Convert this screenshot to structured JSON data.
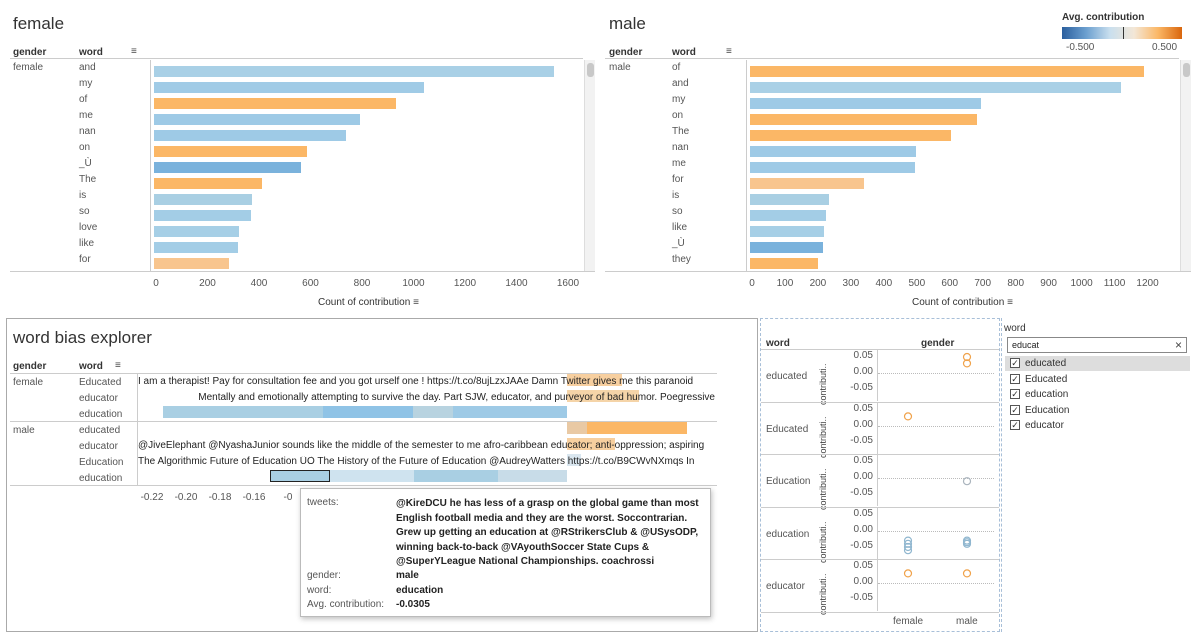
{
  "female_chart": {
    "title": "female",
    "headers": {
      "gender": "gender",
      "word": "word"
    },
    "gender_value": "female",
    "words": [
      "and",
      "my",
      "of",
      "me",
      "nan",
      "on",
      "_Ù",
      "The",
      "is",
      "so",
      "love",
      "like",
      "for"
    ],
    "counts": [
      1555,
      1050,
      940,
      800,
      745,
      595,
      570,
      420,
      380,
      375,
      330,
      325,
      290
    ],
    "colors": [
      "#a9d0e6",
      "#a0cbe6",
      "#fbb766",
      "#9ecae6",
      "#9ecae6",
      "#fbb766",
      "#7ab2dc",
      "#fbb766",
      "#a9cfe3",
      "#a3cde6",
      "#a6cfe6",
      "#a3cde6",
      "#f8c58e"
    ],
    "ticks": [
      "0",
      "200",
      "400",
      "600",
      "800",
      "1000",
      "1200",
      "1400",
      "1600"
    ],
    "xlabel": "Count of contribution",
    "xmax": 1600
  },
  "male_chart": {
    "title": "male",
    "headers": {
      "gender": "gender",
      "word": "word"
    },
    "gender_value": "male",
    "words": [
      "of",
      "and",
      "my",
      "on",
      "The",
      "nan",
      "me",
      "for",
      "is",
      "so",
      "like",
      "_Ù",
      "they"
    ],
    "counts": [
      1195,
      1125,
      700,
      690,
      610,
      505,
      500,
      345,
      240,
      230,
      225,
      220,
      205
    ],
    "colors": [
      "#fbb766",
      "#a9d0e6",
      "#9ecae6",
      "#fbb766",
      "#fbb766",
      "#9ecae6",
      "#9ecae6",
      "#f8c58e",
      "#a9cfe3",
      "#a3cde6",
      "#a6cfe6",
      "#7ab2dc",
      "#fbb766"
    ],
    "ticks": [
      "0",
      "100",
      "200",
      "300",
      "400",
      "500",
      "600",
      "700",
      "800",
      "900",
      "1000",
      "1100",
      "1200"
    ],
    "xlabel": "Count of contribution",
    "xmax": 1250
  },
  "legend": {
    "title": "Avg. contribution",
    "min_label": "-0.500",
    "max_label": "0.500"
  },
  "explorer": {
    "title": "word bias explorer",
    "headers": {
      "gender": "gender",
      "word": "word"
    },
    "rows": [
      {
        "gender": "female",
        "word": "Educated",
        "text": "I am a therapist!  Pay for consultation fee and you got urself one !  https://t.co/8ujLzxJAAe Damn Twitter gives me this paranoid"
      },
      {
        "gender": "",
        "word": "educator",
        "text": "Mentally and emotionally attempting to survive the day. Part SJW, educator, and purveyor of bad humor. Poegressive"
      },
      {
        "gender": "",
        "word": "education",
        "text": ""
      },
      {
        "gender": "male",
        "word": "educated",
        "text": ""
      },
      {
        "gender": "",
        "word": "educator",
        "text": "@JiveElephant @NyashaJunior sounds like the middle of the semester to me afro-caribbean educator; anti-oppression; aspiring"
      },
      {
        "gender": "",
        "word": "Education",
        "text": "The Algorithmic Future of Education ÛÒ The History of the Future of Education @AudreyWatters  https://t.co/B9CWvNXmqs In"
      },
      {
        "gender": "",
        "word": "education",
        "text": ""
      }
    ],
    "ticks": [
      "-0.22",
      "-0.20",
      "-0.18",
      "-0.16",
      "-0"
    ],
    "tooltip": {
      "tweets_label": "tweets:",
      "tweets_value": "@KireDCU he has less of a grasp on the global game than most English football media and they are the worst. Soccontrarian. Grew up getting an education at @RStrikersClub & @USysODP, winning back-to-back @VAyouthSoccer State Cups & @SuperYLeague National Championships. coachrossi",
      "gender_label": "gender:",
      "gender_value": "male",
      "word_label": "word:",
      "word_value": "education",
      "avg_label": "Avg. contribution:",
      "avg_value": "-0.0305"
    }
  },
  "scatter": {
    "headers": {
      "word": "word",
      "gender": "gender"
    },
    "rows": [
      "educated",
      "Educated",
      "Education",
      "education",
      "educator"
    ],
    "axis_title": "contributi..",
    "ticks": [
      "0.05",
      "0.00",
      "-0.05"
    ],
    "x_labels": [
      "female",
      "male"
    ]
  },
  "filter": {
    "title": "word",
    "search_value": "educat",
    "clear_icon": "×",
    "items": [
      {
        "label": "educated",
        "checked": true
      },
      {
        "label": "Educated",
        "checked": true
      },
      {
        "label": "education",
        "checked": true
      },
      {
        "label": "Education",
        "checked": true
      },
      {
        "label": "educator",
        "checked": true
      }
    ]
  }
}
